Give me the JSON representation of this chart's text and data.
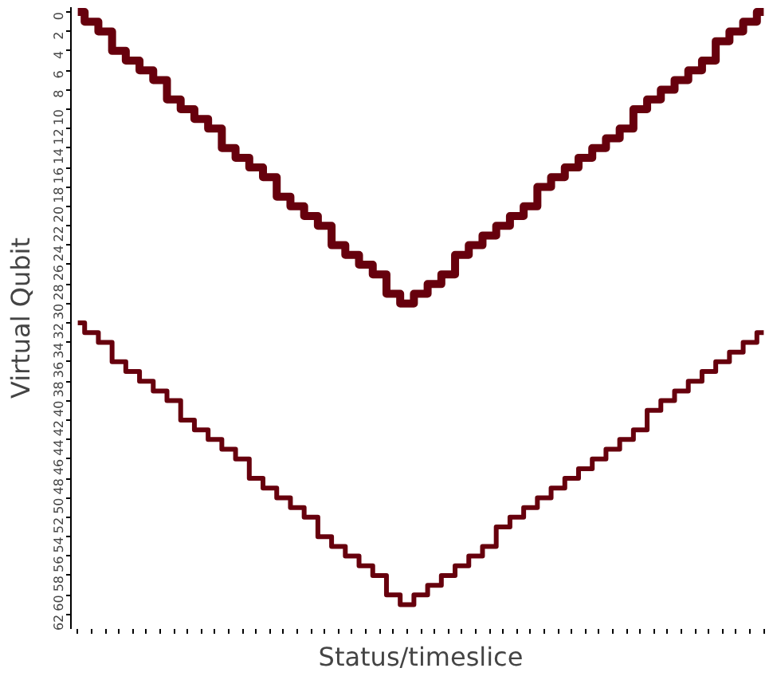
{
  "chart_data": {
    "type": "step",
    "xlabel": "Status/timeslice",
    "ylabel": "Virtual Qubit",
    "categories": [
      null,
      null,
      null,
      null,
      null,
      null,
      null,
      null,
      null,
      null,
      null,
      null,
      null,
      null,
      null,
      null,
      null,
      null,
      null,
      null,
      null,
      null,
      null,
      null,
      null,
      null,
      null,
      null,
      null,
      null,
      null,
      null,
      null,
      null,
      null,
      null,
      null,
      null,
      null,
      null,
      null,
      null,
      null,
      null,
      null,
      null,
      null,
      null,
      null,
      null,
      null
    ],
    "series": [
      {
        "color": "#67000d",
        "values": [
          0,
          1,
          2,
          4,
          5,
          6,
          7,
          9,
          10,
          11,
          12,
          14,
          15,
          16,
          17,
          19,
          20,
          21,
          22,
          24,
          25,
          26,
          27,
          29,
          30,
          29,
          28,
          27,
          25,
          24,
          23,
          22,
          21,
          20,
          18,
          17,
          16,
          15,
          14,
          13,
          12,
          10,
          9,
          8,
          7,
          6,
          5,
          3,
          2,
          1,
          0
        ]
      },
      {
        "color": "#67000d",
        "values": [
          32,
          33,
          34,
          36,
          37,
          38,
          39,
          40,
          42,
          43,
          44,
          45,
          46,
          48,
          49,
          50,
          51,
          52,
          54,
          55,
          56,
          57,
          58,
          60,
          61,
          60,
          59,
          58,
          57,
          56,
          55,
          53,
          52,
          51,
          50,
          49,
          48,
          47,
          46,
          45,
          44,
          43,
          41,
          40,
          39,
          38,
          37,
          36,
          35,
          34,
          33
        ]
      }
    ],
    "ylim": [
      63.5,
      -0.5
    ],
    "yticks": [
      0,
      2,
      4,
      6,
      8,
      10,
      12,
      14,
      16,
      18,
      20,
      22,
      24,
      26,
      28,
      30,
      32,
      34,
      36,
      38,
      40,
      42,
      44,
      46,
      48,
      50,
      52,
      54,
      56,
      58,
      60,
      62
    ],
    "grid": false,
    "tick_labels": "y"
  }
}
